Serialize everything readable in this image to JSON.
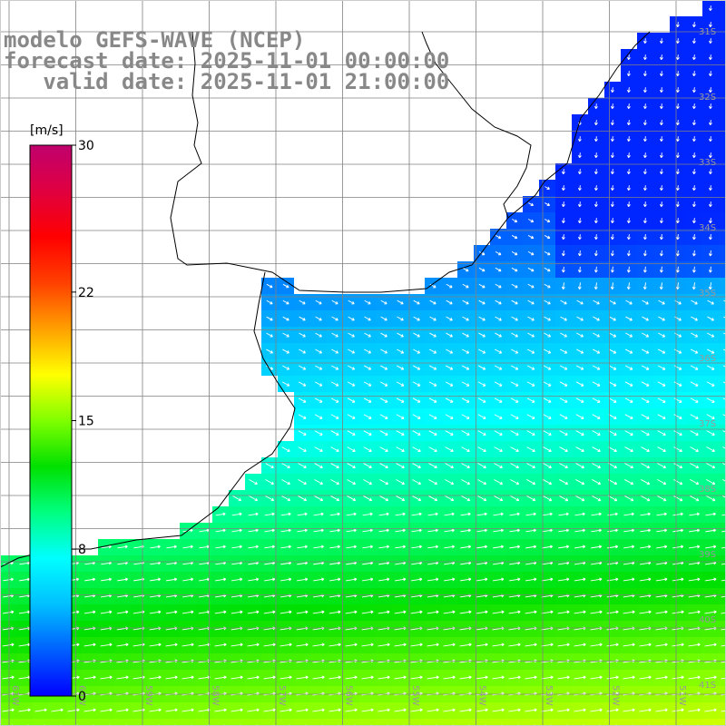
{
  "titles": {
    "model": "modelo GEFS-WAVE (NCEP)",
    "forecast": "forecast date: 2025-11-01 00:00:00",
    "valid": "   valid date: 2025-11-01 21:00:00"
  },
  "colorbar": {
    "unit": "[m/s]",
    "tick_labels": [
      "30",
      "22",
      "15",
      "8",
      "0"
    ],
    "tick_values": [
      30,
      22,
      15,
      8,
      0
    ],
    "colors": [
      "#0000ff",
      "#0060ff",
      "#00c0ff",
      "#00ffff",
      "#00ff80",
      "#00e000",
      "#80ff00",
      "#ffff00",
      "#ffa000",
      "#ff4000",
      "#ff0000",
      "#e00040",
      "#c0006e"
    ]
  },
  "grid": {
    "lat_labels": [
      "31S",
      "32S",
      "33S",
      "34S",
      "35S",
      "36S",
      "37S",
      "38S",
      "39S",
      "40S",
      "41S"
    ],
    "lon_labels": [
      "61W",
      "60W",
      "59W",
      "58W",
      "57W",
      "56W",
      "55W",
      "54W",
      "53W",
      "52W",
      "51W"
    ]
  },
  "field": {
    "description_colors": {
      "sea": "#00ffff"
    }
  }
}
